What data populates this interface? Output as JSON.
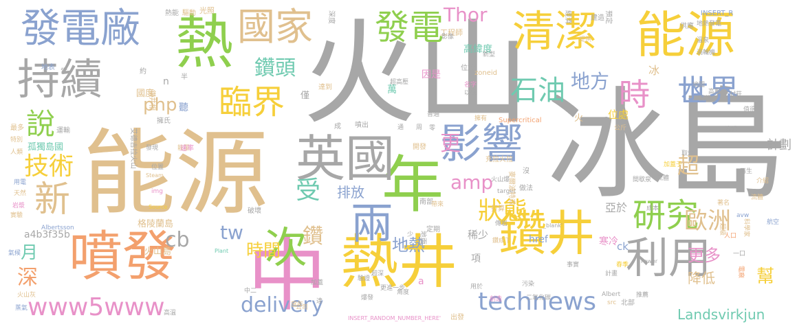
{
  "palette": {
    "grey": "#a7a7a7",
    "tan": "#e0c08e",
    "yellow": "#f6cf3a",
    "green": "#8fcf4e",
    "blue": "#8aa2cf",
    "orange": "#f3a06d",
    "pink": "#e891c8",
    "teal": "#6fcab0"
  },
  "words": [
    {
      "text": "冰島",
      "color": "grey"
    },
    {
      "text": "火山",
      "color": "grey"
    },
    {
      "text": "能源",
      "color": "tan"
    },
    {
      "text": "熱井",
      "color": "yellow"
    },
    {
      "text": "年",
      "color": "green"
    },
    {
      "text": "中",
      "color": "pink"
    },
    {
      "text": "噴發",
      "color": "orange"
    },
    {
      "text": "英國",
      "color": "grey"
    },
    {
      "text": "兩",
      "color": "blue"
    },
    {
      "text": "次",
      "color": "green"
    },
    {
      "text": "影響",
      "color": "blue"
    },
    {
      "text": "鑽井",
      "color": "yellow"
    },
    {
      "text": "利用",
      "color": "grey"
    },
    {
      "text": "清潔",
      "color": "yellow"
    },
    {
      "text": "能源",
      "color": "yellow"
    },
    {
      "text": "熱",
      "color": "green"
    },
    {
      "text": "持續",
      "color": "grey"
    },
    {
      "text": "發電廠",
      "color": "blue"
    },
    {
      "text": "國家",
      "color": "tan"
    },
    {
      "text": "發電",
      "color": "green"
    },
    {
      "text": "世界",
      "color": "blue"
    },
    {
      "text": "時",
      "color": "pink"
    },
    {
      "text": "石油",
      "color": "teal"
    },
    {
      "text": "臨界",
      "color": "yellow"
    },
    {
      "text": "研究",
      "color": "green"
    },
    {
      "text": "狀態",
      "color": "yellow"
    },
    {
      "text": "歐洲",
      "color": "tan"
    },
    {
      "text": "technews",
      "color": "blue"
    },
    {
      "text": "www5www",
      "color": "pink"
    },
    {
      "text": "delivery",
      "color": "blue"
    },
    {
      "text": "新",
      "color": "tan"
    },
    {
      "text": "說",
      "color": "green"
    },
    {
      "text": "技術",
      "color": "yellow"
    },
    {
      "text": "鑽頭",
      "color": "teal"
    },
    {
      "text": "地方",
      "color": "blue"
    },
    {
      "text": "水",
      "color": "blue"
    },
    {
      "text": "Thor",
      "color": "pink"
    },
    {
      "text": "php",
      "color": "tan"
    },
    {
      "text": "amp",
      "color": "pink"
    },
    {
      "text": "受",
      "color": "teal"
    },
    {
      "text": "更",
      "color": "pink"
    },
    {
      "text": "超",
      "color": "tan"
    },
    {
      "text": "cb",
      "color": "grey"
    },
    {
      "text": "tw",
      "color": "blue"
    },
    {
      "text": "時間",
      "color": "yellow"
    },
    {
      "text": "鑽",
      "color": "tan"
    },
    {
      "text": "地熱",
      "color": "blue"
    },
    {
      "text": "月",
      "color": "teal"
    },
    {
      "text": "深",
      "color": "orange"
    },
    {
      "text": "排放",
      "color": "blue"
    },
    {
      "text": "更多",
      "color": "pink"
    },
    {
      "text": "降低",
      "color": "tan"
    },
    {
      "text": "幫",
      "color": "yellow"
    },
    {
      "text": "Landsvirkjun",
      "color": "teal"
    },
    {
      "text": "計劃",
      "color": "grey"
    },
    {
      "text": "格陵蘭島",
      "color": "tan"
    },
    {
      "text": "火山島",
      "color": "tan"
    },
    {
      "text": "a4b3f35b",
      "color": "grey"
    },
    {
      "text": "高緯度",
      "color": "teal"
    },
    {
      "text": "因是",
      "color": "pink"
    },
    {
      "text": "萬",
      "color": "teal"
    },
    {
      "text": "國度",
      "color": "tan"
    },
    {
      "text": "孤獨島國",
      "color": "teal"
    },
    {
      "text": "位處",
      "color": "yellow"
    },
    {
      "text": "亞於",
      "color": "grey"
    },
    {
      "text": "寒冷",
      "color": "pink"
    },
    {
      "text": "稀少",
      "color": "grey"
    },
    {
      "text": "項",
      "color": "grey"
    },
    {
      "text": "href",
      "color": "blue"
    },
    {
      "text": "ck",
      "color": "blue"
    },
    {
      "text": "聽",
      "color": "blue"
    },
    {
      "text": "僅",
      "color": "grey"
    },
    {
      "text": "冰",
      "color": "tan"
    },
    {
      "text": "n",
      "color": "grey"
    },
    {
      "text": "光照",
      "color": "tan"
    },
    {
      "text": "火",
      "color": "tan"
    },
    {
      "text": "a",
      "color": "pink"
    },
    {
      "text": "Supercritical",
      "color": "orange"
    },
    {
      "text": "INSERT_RANDOM_NUMBER_HERE'",
      "color": "pink"
    },
    {
      "text": "Albertsson",
      "color": "blue"
    },
    {
      "text": "Steam",
      "color": "tan"
    },
    {
      "text": "Source",
      "color": "yellow"
    },
    {
      "text": "Plant",
      "color": "teal"
    },
    {
      "text": "Power",
      "color": "grey"
    },
    {
      "text": "target",
      "color": "grey"
    },
    {
      "text": "_blank'",
      "color": "grey"
    },
    {
      "text": "zoneid",
      "color": "tan"
    },
    {
      "text": "INSERT_R",
      "color": "blue"
    },
    {
      "text": "Albert",
      "color": "grey"
    },
    {
      "text": "img",
      "color": "pink"
    },
    {
      "text": "src",
      "color": "tan"
    },
    {
      "text": "avw",
      "color": "blue"
    },
    {
      "text": "鑽井相",
      "color": "tan"
    },
    {
      "text": "深度",
      "color": "grey"
    },
    {
      "text": "經濟",
      "color": "grey"
    },
    {
      "text": "預定",
      "color": "grey"
    },
    {
      "text": "艾德吉拉火山",
      "color": "grey"
    },
    {
      "text": "麥爾波特森",
      "color": "tan"
    },
    {
      "text": "二氧化碳",
      "color": "grey"
    },
    {
      "text": "科學家",
      "color": "tan"
    },
    {
      "text": "地表",
      "color": "blue"
    },
    {
      "text": "工程師",
      "color": "tan"
    },
    {
      "text": "熱能",
      "color": "grey"
    },
    {
      "text": "驅動",
      "color": "tan"
    },
    {
      "text": "地熱發電",
      "color": "grey"
    },
    {
      "text": "溫泉",
      "color": "grey"
    },
    {
      "text": "渦輪機",
      "color": "grey"
    },
    {
      "text": "北部",
      "color": "grey"
    },
    {
      "text": "蒸汽",
      "color": "grey"
    },
    {
      "text": "流體",
      "color": "tan"
    },
    {
      "text": "航空",
      "color": "blue"
    },
    {
      "text": "成本",
      "color": "grey"
    },
    {
      "text": "最多",
      "color": "tan"
    },
    {
      "text": "特別",
      "color": "tan"
    },
    {
      "text": "人類",
      "color": "tan"
    },
    {
      "text": "用電",
      "color": "blue"
    },
    {
      "text": "天然",
      "color": "tan"
    },
    {
      "text": "岩漿",
      "color": "pink"
    },
    {
      "text": "實驗",
      "color": "tan"
    },
    {
      "text": "火山灰",
      "color": "tan"
    },
    {
      "text": "蒸氣",
      "color": "blue"
    },
    {
      "text": "氣候",
      "color": "blue"
    },
    {
      "text": "達",
      "color": "grey"
    },
    {
      "text": "公司",
      "color": "tan"
    },
    {
      "text": "出發",
      "color": "tan"
    },
    {
      "text": "推薦",
      "color": "grey"
    },
    {
      "text": "介紹",
      "color": "tan"
    },
    {
      "text": "加蓋",
      "color": "grey"
    },
    {
      "text": "發現",
      "color": "grey"
    },
    {
      "text": "位置",
      "color": "grey"
    },
    {
      "text": "能量",
      "color": "tan"
    },
    {
      "text": "高溫",
      "color": "grey"
    },
    {
      "text": "中二",
      "color": "grey"
    },
    {
      "text": "當年",
      "color": "tan"
    },
    {
      "text": "更進一步",
      "color": "grey"
    },
    {
      "text": "角度",
      "color": "grey"
    },
    {
      "text": "創造",
      "color": "pink"
    },
    {
      "text": "污染",
      "color": "grey"
    },
    {
      "text": "事實",
      "color": "grey"
    },
    {
      "text": "計畫",
      "color": "grey"
    },
    {
      "text": "春季",
      "color": "yellow"
    },
    {
      "text": "一口",
      "color": "grey"
    },
    {
      "text": "電廠",
      "color": "orange"
    },
    {
      "text": "超級",
      "color": "tan"
    },
    {
      "text": "著名",
      "color": "tan"
    },
    {
      "text": "人口",
      "color": "orange"
    },
    {
      "text": "做法",
      "color": "grey"
    },
    {
      "text": "再生",
      "color": "grey"
    },
    {
      "text": "公斤",
      "color": "tan"
    },
    {
      "text": "取熱",
      "color": "grey"
    },
    {
      "text": "加蓋子",
      "color": "yellow"
    },
    {
      "text": "間歇泉",
      "color": "grey"
    },
    {
      "text": "流體",
      "color": "grey"
    },
    {
      "text": "地圖",
      "color": "grey"
    },
    {
      "text": "高壓",
      "color": "grey"
    },
    {
      "text": "村莊",
      "color": "grey"
    },
    {
      "text": "值得",
      "color": "grey"
    },
    {
      "text": "流體",
      "color": "grey"
    },
    {
      "text": "名字",
      "color": "pink"
    },
    {
      "text": "以往",
      "color": "grey"
    },
    {
      "text": "普通",
      "color": "grey"
    },
    {
      "text": "超高壓",
      "color": "grey"
    },
    {
      "text": "達到",
      "color": "tan"
    },
    {
      "text": "位於",
      "color": "grey"
    },
    {
      "text": "影像",
      "color": "grey"
    },
    {
      "text": "新型",
      "color": "grey"
    },
    {
      "text": "擁有",
      "color": "tan"
    },
    {
      "text": "提供",
      "color": "tan"
    },
    {
      "text": "建造",
      "color": "grey"
    },
    {
      "text": "供應",
      "color": "grey"
    },
    {
      "text": "速率",
      "color": "pink"
    },
    {
      "text": "成",
      "color": "grey"
    },
    {
      "text": "噴出",
      "color": "grey"
    },
    {
      "text": "通",
      "color": "grey"
    },
    {
      "text": "周",
      "color": "grey"
    },
    {
      "text": "零",
      "color": "grey"
    },
    {
      "text": "常",
      "color": "grey"
    },
    {
      "text": "約",
      "color": "grey"
    },
    {
      "text": "半",
      "color": "grey"
    },
    {
      "text": "運輸",
      "color": "grey"
    },
    {
      "text": "擁氏",
      "color": "grey"
    },
    {
      "text": "破壞",
      "color": "grey"
    },
    {
      "text": "開發",
      "color": "tan"
    },
    {
      "text": "充拉火拉",
      "color": "tan"
    },
    {
      "text": "沒",
      "color": "grey"
    },
    {
      "text": "南部",
      "color": "grey"
    },
    {
      "text": "帶來",
      "color": "tan"
    },
    {
      "text": "地面",
      "color": "grey"
    },
    {
      "text": "打算",
      "color": "tan"
    },
    {
      "text": "傳岩",
      "color": "grey"
    },
    {
      "text": "火山爆",
      "color": "grey"
    },
    {
      "text": "鑽成下",
      "color": "tan"
    },
    {
      "text": "定期",
      "color": "grey"
    },
    {
      "text": "用於",
      "color": "grey"
    },
    {
      "text": "少",
      "color": "grey"
    },
    {
      "text": "超深",
      "color": "grey"
    },
    {
      "text": "驗證",
      "color": "grey"
    },
    {
      "text": "爆發",
      "color": "grey"
    },
    {
      "text": "激發",
      "color": "grey"
    },
    {
      "text": "底",
      "color": "grey"
    }
  ]
}
